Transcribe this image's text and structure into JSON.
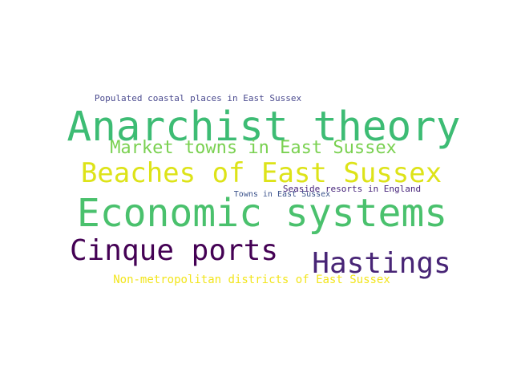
{
  "words": [
    {
      "text": "Populated coastal places in East Sussex",
      "color": "#4b4b8f"
    },
    {
      "text": "Anarchist theory",
      "color": "#3dbc74"
    },
    {
      "text": "Market towns in East Sussex",
      "color": "#7ad151"
    },
    {
      "text": "Beaches of East Sussex",
      "color": "#dde318"
    },
    {
      "text": "Seaside resorts in England",
      "color": "#46237a"
    },
    {
      "text": "Towns in East Sussex",
      "color": "#3b528b"
    },
    {
      "text": "Economic systems",
      "color": "#4ac16d"
    },
    {
      "text": "Cinque ports",
      "color": "#440154"
    },
    {
      "text": "Hastings",
      "color": "#482576"
    },
    {
      "text": "Non-metropolitan districts of East Sussex",
      "color": "#f2e51d"
    }
  ]
}
